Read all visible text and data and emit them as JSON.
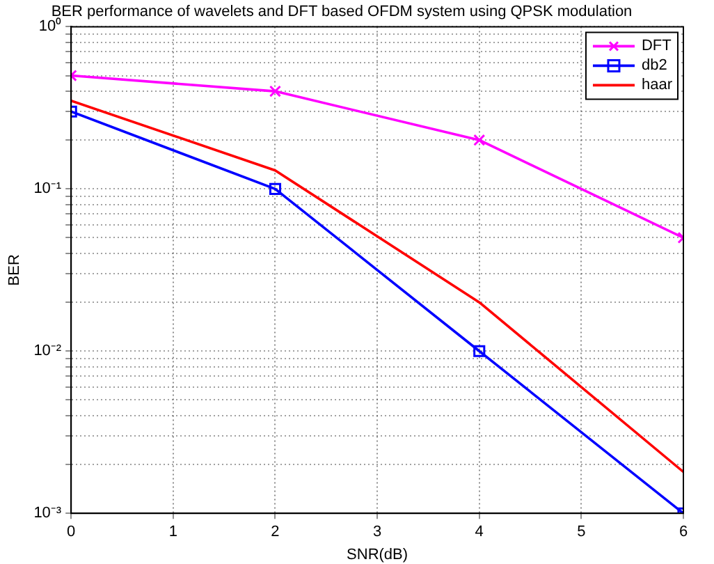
{
  "chart_data": {
    "type": "line",
    "title": "BER performance of wavelets and DFT based OFDM system using QPSK modulation",
    "xlabel": "SNR(dB)",
    "ylabel": "BER",
    "x": [
      0,
      2,
      4,
      6
    ],
    "log": "y",
    "xlim": [
      0,
      6
    ],
    "xticks": [
      0,
      1,
      2,
      3,
      4,
      5,
      6
    ],
    "ylim": [
      0.001,
      1
    ],
    "yticks": [
      {
        "value": 0.001,
        "label": "10⁻³"
      },
      {
        "value": 0.002,
        "label": null
      },
      {
        "value": 0.003,
        "label": null
      },
      {
        "value": 0.004,
        "label": null
      },
      {
        "value": 0.005,
        "label": null
      },
      {
        "value": 0.006,
        "label": null
      },
      {
        "value": 0.007,
        "label": null
      },
      {
        "value": 0.008,
        "label": null
      },
      {
        "value": 0.009,
        "label": null
      },
      {
        "value": 0.01,
        "label": "10⁻²"
      },
      {
        "value": 0.02,
        "label": null
      },
      {
        "value": 0.03,
        "label": null
      },
      {
        "value": 0.04,
        "label": null
      },
      {
        "value": 0.05,
        "label": null
      },
      {
        "value": 0.06,
        "label": null
      },
      {
        "value": 0.07,
        "label": null
      },
      {
        "value": 0.08,
        "label": null
      },
      {
        "value": 0.09,
        "label": null
      },
      {
        "value": 0.1,
        "label": "10⁻¹"
      },
      {
        "value": 0.2,
        "label": null
      },
      {
        "value": 0.3,
        "label": null
      },
      {
        "value": 0.4,
        "label": null
      },
      {
        "value": 0.5,
        "label": null
      },
      {
        "value": 0.6,
        "label": null
      },
      {
        "value": 0.7,
        "label": null
      },
      {
        "value": 0.8,
        "label": null
      },
      {
        "value": 0.9,
        "label": null
      },
      {
        "value": 1,
        "label": "10⁰"
      }
    ],
    "grid": true,
    "legend": "top right",
    "line_style": "solid",
    "series": [
      {
        "name": "DFT",
        "color": "#ff00ff",
        "marker": "cross",
        "values": [
          0.5,
          0.4,
          0.2,
          0.05
        ]
      },
      {
        "name": "db2",
        "color": "#0000ff",
        "marker": "square",
        "values": [
          0.3,
          0.1,
          0.01,
          0.001
        ]
      },
      {
        "name": "haar",
        "color": "#ff0000",
        "marker": "none",
        "values": [
          0.35,
          0.13,
          0.02,
          0.0018
        ]
      }
    ]
  }
}
